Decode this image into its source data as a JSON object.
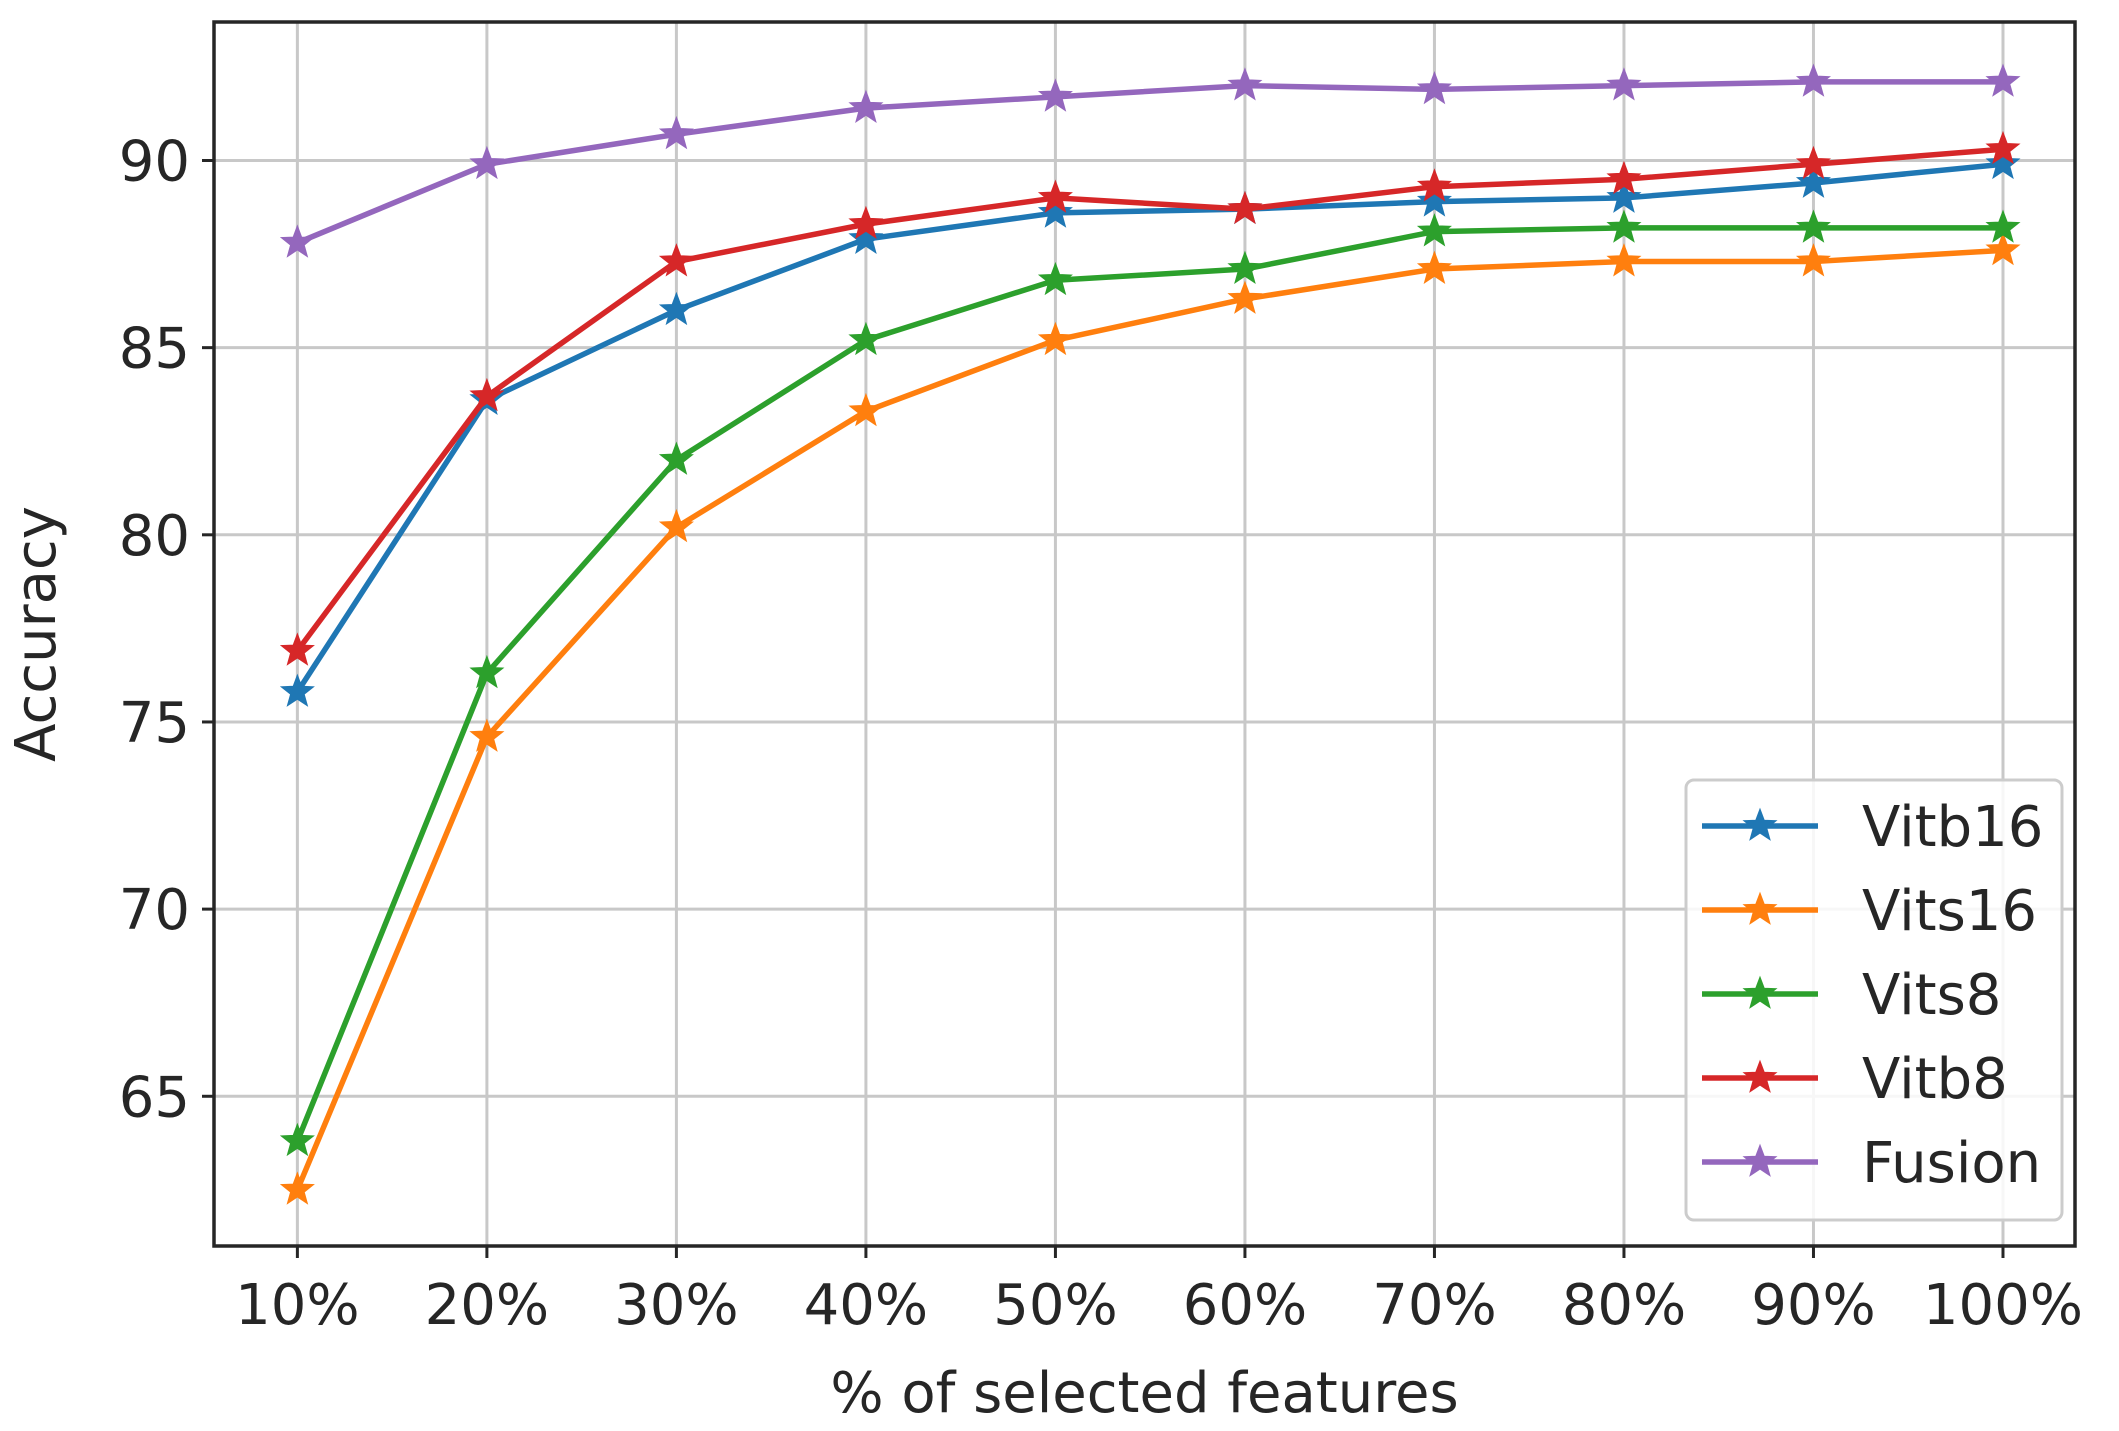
{
  "chart_data": {
    "type": "line",
    "title": "",
    "xlabel": "% of selected features",
    "ylabel": "Accuracy",
    "categories": [
      "10%",
      "20%",
      "30%",
      "40%",
      "50%",
      "60%",
      "70%",
      "80%",
      "90%",
      "100%"
    ],
    "x": [
      10,
      20,
      30,
      40,
      50,
      60,
      70,
      80,
      90,
      100
    ],
    "xlim": [
      5.6,
      103.8
    ],
    "ylim": [
      61.0,
      93.7
    ],
    "yticks": [
      65,
      70,
      75,
      80,
      85,
      90
    ],
    "grid": true,
    "legend_position": "lower-right",
    "marker": "star",
    "series": [
      {
        "name": "Vitb16",
        "color": "#1f77b4",
        "values": [
          75.8,
          83.6,
          86.0,
          87.9,
          88.6,
          88.7,
          88.9,
          89.0,
          89.4,
          89.9
        ]
      },
      {
        "name": "Vits16",
        "color": "#ff7f0e",
        "values": [
          62.5,
          74.6,
          80.2,
          83.3,
          85.2,
          86.3,
          87.1,
          87.3,
          87.3,
          87.6
        ]
      },
      {
        "name": "Vits8",
        "color": "#2ca02c",
        "values": [
          63.8,
          76.3,
          82.0,
          85.2,
          86.8,
          87.1,
          88.1,
          88.2,
          88.2,
          88.2
        ]
      },
      {
        "name": "Vitb8",
        "color": "#d62728",
        "values": [
          76.9,
          83.7,
          87.3,
          88.3,
          89.0,
          88.7,
          89.3,
          89.5,
          89.9,
          90.3
        ]
      },
      {
        "name": "Fusion",
        "color": "#9467bd",
        "values": [
          87.8,
          89.9,
          90.7,
          91.4,
          91.7,
          92.0,
          91.9,
          92.0,
          92.1,
          92.1
        ]
      }
    ]
  }
}
